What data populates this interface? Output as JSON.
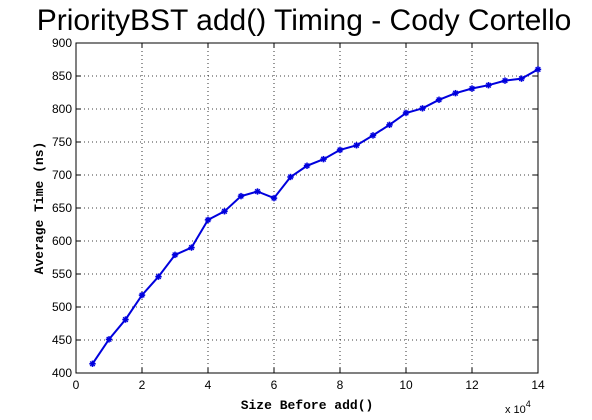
{
  "chart_data": {
    "type": "line",
    "title": "PriorityBST add() Timing - Cody Cortello",
    "xlabel": "Size Before add()",
    "ylabel": "Average Time (ns)",
    "x_multiplier": "x 10",
    "x_multiplier_exponent": "4",
    "xlim": [
      0,
      140000
    ],
    "ylim": [
      400,
      900
    ],
    "xtick_values": [
      0,
      20000,
      40000,
      60000,
      80000,
      100000,
      120000,
      140000
    ],
    "xtick_labels": [
      "0",
      "2",
      "4",
      "6",
      "8",
      "10",
      "12",
      "14"
    ],
    "ytick_values": [
      400,
      450,
      500,
      550,
      600,
      650,
      700,
      750,
      800,
      850,
      900
    ],
    "ytick_labels": [
      "400",
      "450",
      "500",
      "550",
      "600",
      "650",
      "700",
      "750",
      "800",
      "850",
      "900"
    ],
    "grid": true,
    "series": [
      {
        "color": "#0000dd",
        "x": [
          5000,
          10000,
          15000,
          20000,
          25000,
          30000,
          35000,
          40000,
          45000,
          50000,
          55000,
          60000,
          65000,
          70000,
          75000,
          80000,
          85000,
          90000,
          95000,
          100000,
          105000,
          110000,
          115000,
          120000,
          125000,
          130000,
          135000,
          140000
        ],
        "y": [
          414,
          451,
          481,
          518,
          546,
          579,
          590,
          632,
          645,
          668,
          675,
          665,
          697,
          714,
          724,
          738,
          745,
          760,
          776,
          794,
          801,
          814,
          824,
          831,
          836,
          843,
          846,
          860
        ]
      }
    ]
  }
}
